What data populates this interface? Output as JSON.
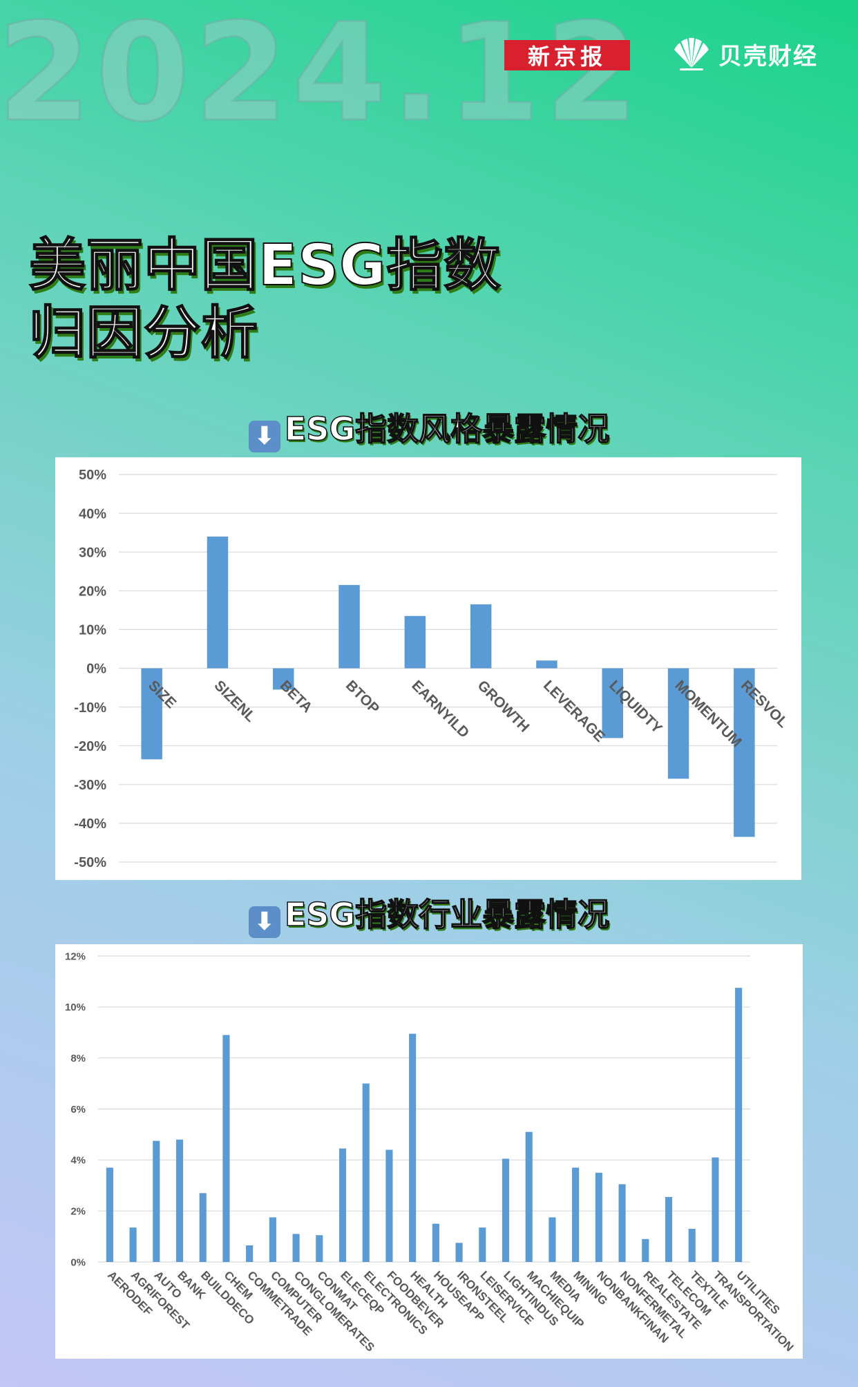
{
  "header": {
    "date": "2024.12",
    "brand_xjb": "新京报",
    "brand_bk": "贝壳财经",
    "logo_icon": "shell-fan-icon"
  },
  "title": {
    "line1": "美丽中国ESG指数",
    "line2": "归因分析"
  },
  "sections": {
    "style": {
      "arrow": "⬇",
      "label": "ESG指数风格暴露情况"
    },
    "industry": {
      "arrow": "⬇",
      "label": "ESG指数行业暴露情况"
    }
  },
  "colors": {
    "bar": "#5b9bd5",
    "grid": "#d9d9d9",
    "axis_text": "#595959",
    "brand_red": "#d9202e"
  },
  "chart_data": [
    {
      "type": "bar",
      "categories": [
        "SIZE",
        "SIZENL",
        "BETA",
        "BTOP",
        "EARNYILD",
        "GROWTH",
        "LEVERAGE",
        "LIQUIDTY",
        "MOMENTUM",
        "RESVOL"
      ],
      "values": [
        -23.5,
        34,
        -5.5,
        21.5,
        13.5,
        16.5,
        2,
        -18,
        -28.5,
        -43.5
      ],
      "ylim": [
        -50,
        50
      ],
      "yticks": [
        "-50%",
        "-40%",
        "-30%",
        "-20%",
        "-10%",
        "0%",
        "10%",
        "20%",
        "30%",
        "40%",
        "50%"
      ],
      "ytick_values": [
        -50,
        -40,
        -30,
        -20,
        -10,
        0,
        10,
        20,
        30,
        40,
        50
      ],
      "grid": true,
      "legend": "none"
    },
    {
      "type": "bar",
      "categories": [
        "AERODEF",
        "AGRIFOREST",
        "AUTO",
        "BANK",
        "BUILDDECO",
        "CHEM",
        "COMMETRADE",
        "COMPUTER",
        "CONGLOMERATES",
        "CONMAT",
        "ELECEQP",
        "ELECTRONICS",
        "FOODBEVER",
        "HEALTH",
        "HOUSEAPP",
        "IRONSTEEL",
        "LEISERVICE",
        "LIGHTINDUS",
        "MACHIEQUIP",
        "MEDIA",
        "MINING",
        "NONBANKFINAN",
        "NONFERMETAL",
        "REALESTATE",
        "TELECOM",
        "TEXTILE",
        "TRANSPORTATION",
        "UTILITIES"
      ],
      "values": [
        3.7,
        1.35,
        4.75,
        4.8,
        2.7,
        8.9,
        0.65,
        1.75,
        1.1,
        1.05,
        4.45,
        7.0,
        4.4,
        8.95,
        1.5,
        0.75,
        1.35,
        4.05,
        5.1,
        1.75,
        3.7,
        3.5,
        3.05,
        0.9,
        2.55,
        1.3,
        4.1,
        10.75
      ],
      "ylim": [
        0,
        12
      ],
      "yticks": [
        "0%",
        "2%",
        "4%",
        "6%",
        "8%",
        "10%",
        "12%"
      ],
      "ytick_values": [
        0,
        2,
        4,
        6,
        8,
        10,
        12
      ],
      "grid": true,
      "legend": "none"
    }
  ]
}
